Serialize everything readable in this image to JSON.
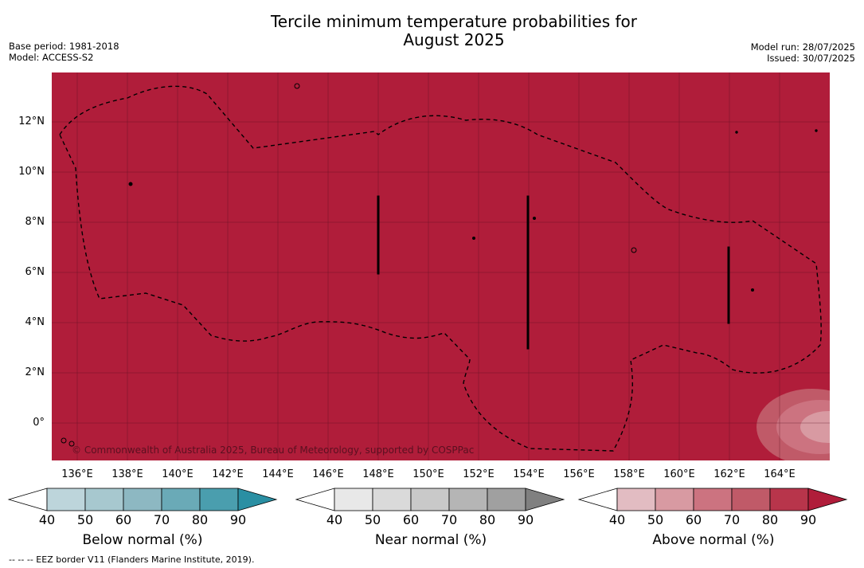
{
  "title_line1": "Tercile minimum temperature probabilities for",
  "title_line2": "August 2025",
  "base_period": "Base period: 1981-2018",
  "model": "Model: ACCESS-S2",
  "model_run": "Model run: 28/07/2025",
  "issued": "Issued: 30/07/2025",
  "copyright": "© Commonwealth of Australia 2025, Bureau of Meteorology, supported by COSPPac",
  "footnote": "--  --  -- EEZ border V11 (Flanders Marine Institute, 2019).",
  "lat_labels": [
    "12°N",
    "10°N",
    "8°N",
    "6°N",
    "4°N",
    "2°N",
    "0°"
  ],
  "lon_labels": [
    "136°E",
    "138°E",
    "140°E",
    "142°E",
    "144°E",
    "146°E",
    "148°E",
    "150°E",
    "152°E",
    "154°E",
    "156°E",
    "158°E",
    "160°E",
    "162°E",
    "164°E"
  ],
  "colorbars": [
    {
      "title": "Below normal (%)",
      "ticks": [
        "40",
        "50",
        "60",
        "70",
        "80",
        "90"
      ],
      "colors": [
        "#ffffff",
        "#bdd5db",
        "#a7c8cf",
        "#8db8c2",
        "#6aaab7",
        "#4a9eae",
        "#2a8fa3"
      ]
    },
    {
      "title": "Near normal (%)",
      "ticks": [
        "40",
        "50",
        "60",
        "70",
        "80",
        "90"
      ],
      "colors": [
        "#ffffff",
        "#e8e8e8",
        "#dadada",
        "#c9c9c9",
        "#b5b5b5",
        "#a0a0a0",
        "#808080"
      ]
    },
    {
      "title": "Above normal (%)",
      "ticks": [
        "40",
        "50",
        "60",
        "70",
        "80",
        "90"
      ],
      "colors": [
        "#ffffff",
        "#e2bcc2",
        "#d89aa2",
        "#cc7380",
        "#c05a68",
        "#b8354b",
        "#b01d3a"
      ]
    }
  ],
  "map_fill_color": "#b01d3a"
}
